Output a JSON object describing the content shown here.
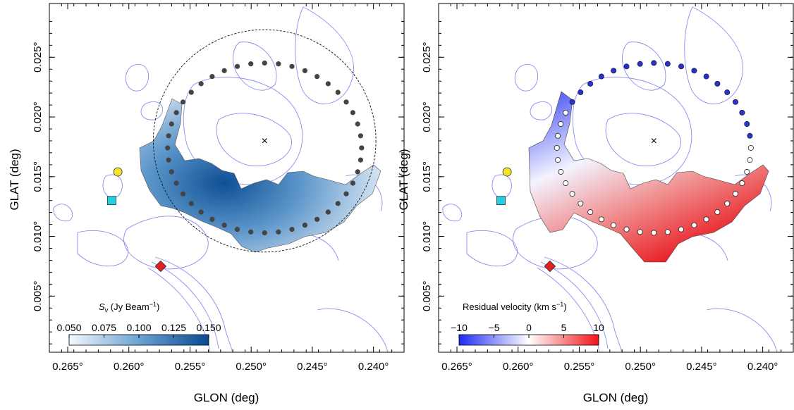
{
  "figure": {
    "panels": [
      {
        "id": "left",
        "colorbar_label_prefix": "S",
        "colorbar_label_sub": "ν",
        "colorbar_label_unit": " (Jy Beam",
        "colorbar_label_exp": "−1",
        "colorbar_label_close": ")",
        "colorbar_ticks": [
          "0.050",
          "0.075",
          "0.100",
          "0.125",
          "0.150"
        ],
        "colorbar_colors": [
          "#f4f8fd",
          "#0b4a8f"
        ]
      },
      {
        "id": "right",
        "colorbar_label_text": "Residual velocity (km s",
        "colorbar_label_exp": "−1",
        "colorbar_label_close": ")",
        "colorbar_ticks": [
          "−10",
          "−5",
          "0",
          "5",
          "10"
        ],
        "colorbar_colors": [
          "#1f2cf2",
          "#ffffff",
          "#f0141b"
        ]
      }
    ],
    "colors": {
      "contour": "#8a8cf0",
      "dot_dark": "#444444",
      "dot_blue": "#2730d9",
      "marker_circle": "#f5e22a",
      "marker_square": "#22d0e0",
      "marker_diamond": "#e02020"
    },
    "center_marker": "×"
  },
  "chart_data": [
    {
      "type": "scatter",
      "title": "",
      "xlabel": "GLON (deg)",
      "ylabel": "GLAT (deg)",
      "x_ticks": [
        "0.265°",
        "0.260°",
        "0.255°",
        "0.250°",
        "0.245°",
        "0.240°"
      ],
      "y_ticks": [
        "0.005°",
        "0.010°",
        "0.015°",
        "0.020°",
        "0.025°"
      ],
      "xlim": [
        0.2665,
        0.2375
      ],
      "ylim": [
        0.0003,
        0.0295
      ],
      "ring_center": [
        0.2489,
        0.018
      ],
      "ring_radius_deg": 0.0091,
      "markers": [
        {
          "shape": "circle",
          "x": 0.2609,
          "y": 0.0154
        },
        {
          "shape": "square",
          "x": 0.2614,
          "y": 0.013
        },
        {
          "shape": "diamond",
          "x": 0.2574,
          "y": 0.0075
        }
      ]
    },
    {
      "type": "scatter",
      "title": "",
      "xlabel": "GLON (deg)",
      "ylabel": "GLAT (deg)",
      "x_ticks": [
        "0.265°",
        "0.260°",
        "0.255°",
        "0.250°",
        "0.245°",
        "0.240°"
      ],
      "y_ticks": [
        "0.005°",
        "0.010°",
        "0.015°",
        "0.020°",
        "0.025°"
      ],
      "xlim": [
        0.2665,
        0.2375
      ],
      "ylim": [
        0.0003,
        0.0295
      ],
      "markers": [
        {
          "shape": "circle",
          "x": 0.2609,
          "y": 0.0154
        },
        {
          "shape": "square",
          "x": 0.2614,
          "y": 0.013
        },
        {
          "shape": "diamond",
          "x": 0.2574,
          "y": 0.0075
        }
      ]
    }
  ]
}
